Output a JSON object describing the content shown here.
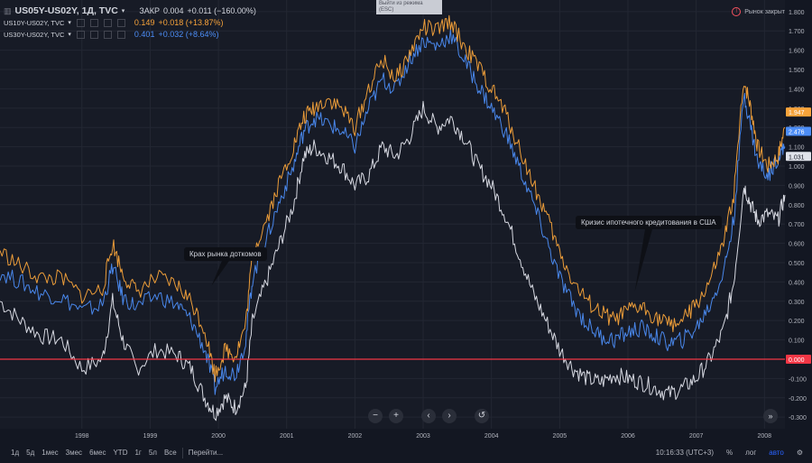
{
  "legend": {
    "main_symbol": "US05Y-US02Y, 1Д, TVC",
    "main_close_label": "ЗАКР",
    "main_close": "0.004",
    "main_change": "+0.011 (−160.00%)",
    "series": [
      {
        "symbol": "US10Y-US02Y, TVC",
        "value": "0.149",
        "change": "+0.018 (+13.87%)",
        "color": "#f7a33a"
      },
      {
        "symbol": "US30Y-US02Y, TVC",
        "value": "0.401",
        "change": "+0.032 (+8.64%)",
        "color": "#4c8df6"
      }
    ]
  },
  "exit_mode": {
    "line1": "Выйти из режима",
    "line2": "(ESC)"
  },
  "market_status": "Рынок закрыт",
  "annotations": {
    "dotcom": "Крах рынка доткомов",
    "mortgage": "Кризис ипотечного кредитования в США"
  },
  "nav": {
    "zoom_out": "−",
    "zoom_in": "+",
    "back": "‹",
    "forward": "›",
    "reset": "↺",
    "scroll_end": "»"
  },
  "bottom_bar": {
    "ranges": [
      "1д",
      "5д",
      "1мес",
      "3мес",
      "6мес",
      "YTD",
      "1г",
      "5л",
      "Все"
    ],
    "goto": "Перейти...",
    "time": "10:16:33 (UTC+3)",
    "percent": "%",
    "log": "лог",
    "auto": "авто"
  },
  "chart_data": {
    "type": "line",
    "x_labels": [
      "1998",
      "1999",
      "2000",
      "2001",
      "2002",
      "2003",
      "2004",
      "2005",
      "2006",
      "2007",
      "2008"
    ],
    "y_ticks": [
      "1.800",
      "1.700",
      "1.600",
      "1.500",
      "1.400",
      "1.300",
      "1.200",
      "1.100",
      "1.000",
      "0.900",
      "0.800",
      "0.700",
      "0.600",
      "0.500",
      "0.400",
      "0.300",
      "0.200",
      "0.100",
      "0.000",
      "-0.100",
      "-0.200",
      "-0.300"
    ],
    "ylim": [
      -0.36,
      1.86
    ],
    "xlim": [
      1997.3,
      2008.8
    ],
    "last_value_labels": [
      {
        "value": "1.947",
        "color": "#f7a33a"
      },
      {
        "value": "2.476",
        "color": "#4c8df6"
      },
      {
        "value": "1.031",
        "color": "#e0e3eb"
      },
      {
        "value": "0.000",
        "color": "#f23645"
      }
    ],
    "reference_line": {
      "value": 0.0,
      "color": "#f23645"
    },
    "annotation_points": [
      {
        "text_key": "dotcom",
        "x": 2000.4,
        "y": 0.38
      },
      {
        "text_key": "mortgage",
        "x": 2006.6,
        "y": 0.35
      }
    ],
    "series": [
      {
        "color": "#f7a33a",
        "points": [
          [
            1997.3,
            0.56
          ],
          [
            1997.6,
            0.48
          ],
          [
            1997.9,
            0.42
          ],
          [
            1998.2,
            0.42
          ],
          [
            1998.5,
            0.33
          ],
          [
            1998.8,
            0.36
          ],
          [
            1998.95,
            0.6
          ],
          [
            1999.1,
            0.44
          ],
          [
            1999.3,
            0.35
          ],
          [
            1999.6,
            0.42
          ],
          [
            1999.9,
            0.38
          ],
          [
            2000.1,
            0.3
          ],
          [
            2000.3,
            0.15
          ],
          [
            2000.45,
            -0.08
          ],
          [
            2000.6,
            0.05
          ],
          [
            2000.75,
            0.02
          ],
          [
            2000.9,
            0.18
          ],
          [
            2001.0,
            0.55
          ],
          [
            2001.2,
            0.72
          ],
          [
            2001.4,
            0.92
          ],
          [
            2001.6,
            1.1
          ],
          [
            2001.75,
            1.25
          ],
          [
            2001.9,
            1.3
          ],
          [
            2002.1,
            1.35
          ],
          [
            2002.3,
            1.3
          ],
          [
            2002.5,
            1.2
          ],
          [
            2002.7,
            1.4
          ],
          [
            2002.9,
            1.55
          ],
          [
            2003.1,
            1.45
          ],
          [
            2003.3,
            1.58
          ],
          [
            2003.5,
            1.72
          ],
          [
            2003.7,
            1.7
          ],
          [
            2003.9,
            1.75
          ],
          [
            2004.1,
            1.62
          ],
          [
            2004.3,
            1.52
          ],
          [
            2004.5,
            1.4
          ],
          [
            2004.7,
            1.28
          ],
          [
            2004.9,
            1.1
          ],
          [
            2005.1,
            0.92
          ],
          [
            2005.3,
            0.75
          ],
          [
            2005.5,
            0.55
          ],
          [
            2005.7,
            0.4
          ],
          [
            2005.9,
            0.3
          ],
          [
            2006.1,
            0.24
          ],
          [
            2006.3,
            0.2
          ],
          [
            2006.5,
            0.25
          ],
          [
            2006.7,
            0.27
          ],
          [
            2006.9,
            0.22
          ],
          [
            2007.1,
            0.18
          ],
          [
            2007.3,
            0.2
          ],
          [
            2007.5,
            0.28
          ],
          [
            2007.7,
            0.4
          ],
          [
            2007.9,
            0.6
          ],
          [
            2008.05,
            0.85
          ],
          [
            2008.2,
            1.45
          ],
          [
            2008.3,
            1.3
          ],
          [
            2008.4,
            1.1
          ],
          [
            2008.55,
            1.0
          ],
          [
            2008.7,
            1.05
          ],
          [
            2008.8,
            1.2
          ]
        ]
      },
      {
        "color": "#4c8df6",
        "points": [
          [
            1997.3,
            0.45
          ],
          [
            1997.6,
            0.4
          ],
          [
            1997.9,
            0.34
          ],
          [
            1998.2,
            0.32
          ],
          [
            1998.5,
            0.25
          ],
          [
            1998.8,
            0.28
          ],
          [
            1998.95,
            0.48
          ],
          [
            1999.1,
            0.32
          ],
          [
            1999.3,
            0.27
          ],
          [
            1999.6,
            0.33
          ],
          [
            1999.9,
            0.28
          ],
          [
            2000.1,
            0.2
          ],
          [
            2000.3,
            0.05
          ],
          [
            2000.45,
            -0.15
          ],
          [
            2000.6,
            -0.05
          ],
          [
            2000.75,
            -0.08
          ],
          [
            2000.9,
            0.1
          ],
          [
            2001.0,
            0.42
          ],
          [
            2001.2,
            0.62
          ],
          [
            2001.4,
            0.82
          ],
          [
            2001.6,
            1.0
          ],
          [
            2001.75,
            1.18
          ],
          [
            2001.9,
            1.25
          ],
          [
            2002.1,
            1.22
          ],
          [
            2002.3,
            1.18
          ],
          [
            2002.5,
            1.1
          ],
          [
            2002.7,
            1.3
          ],
          [
            2002.9,
            1.45
          ],
          [
            2003.1,
            1.4
          ],
          [
            2003.3,
            1.55
          ],
          [
            2003.5,
            1.65
          ],
          [
            2003.7,
            1.62
          ],
          [
            2003.9,
            1.68
          ],
          [
            2004.1,
            1.55
          ],
          [
            2004.3,
            1.42
          ],
          [
            2004.5,
            1.3
          ],
          [
            2004.7,
            1.18
          ],
          [
            2004.9,
            1.0
          ],
          [
            2005.1,
            0.82
          ],
          [
            2005.3,
            0.62
          ],
          [
            2005.5,
            0.42
          ],
          [
            2005.7,
            0.28
          ],
          [
            2005.9,
            0.18
          ],
          [
            2006.1,
            0.12
          ],
          [
            2006.3,
            0.1
          ],
          [
            2006.5,
            0.14
          ],
          [
            2006.7,
            0.16
          ],
          [
            2006.9,
            0.12
          ],
          [
            2007.1,
            0.08
          ],
          [
            2007.3,
            0.1
          ],
          [
            2007.5,
            0.16
          ],
          [
            2007.7,
            0.28
          ],
          [
            2007.9,
            0.45
          ],
          [
            2008.05,
            0.72
          ],
          [
            2008.2,
            1.38
          ],
          [
            2008.3,
            1.2
          ],
          [
            2008.4,
            1.02
          ],
          [
            2008.55,
            0.95
          ],
          [
            2008.7,
            1.05
          ],
          [
            2008.8,
            1.1
          ]
        ]
      },
      {
        "color": "#e0e3eb",
        "points": [
          [
            1997.3,
            0.3
          ],
          [
            1997.6,
            0.2
          ],
          [
            1997.9,
            0.12
          ],
          [
            1998.2,
            0.1
          ],
          [
            1998.5,
            -0.05
          ],
          [
            1998.8,
            0.0
          ],
          [
            1998.95,
            0.3
          ],
          [
            1999.1,
            0.1
          ],
          [
            1999.3,
            -0.05
          ],
          [
            1999.6,
            0.05
          ],
          [
            1999.9,
            0.02
          ],
          [
            2000.1,
            -0.05
          ],
          [
            2000.3,
            -0.2
          ],
          [
            2000.45,
            -0.28
          ],
          [
            2000.6,
            -0.2
          ],
          [
            2000.75,
            -0.25
          ],
          [
            2000.9,
            -0.15
          ],
          [
            2001.0,
            0.2
          ],
          [
            2001.2,
            0.4
          ],
          [
            2001.4,
            0.6
          ],
          [
            2001.6,
            0.8
          ],
          [
            2001.75,
            1.05
          ],
          [
            2001.9,
            1.1
          ],
          [
            2002.1,
            1.05
          ],
          [
            2002.3,
            1.0
          ],
          [
            2002.5,
            0.9
          ],
          [
            2002.7,
            0.95
          ],
          [
            2002.9,
            1.1
          ],
          [
            2003.1,
            1.05
          ],
          [
            2003.3,
            1.15
          ],
          [
            2003.5,
            1.3
          ],
          [
            2003.7,
            1.2
          ],
          [
            2003.9,
            1.25
          ],
          [
            2004.1,
            1.15
          ],
          [
            2004.3,
            1.0
          ],
          [
            2004.5,
            0.9
          ],
          [
            2004.7,
            0.75
          ],
          [
            2004.9,
            0.55
          ],
          [
            2005.1,
            0.35
          ],
          [
            2005.3,
            0.2
          ],
          [
            2005.5,
            0.05
          ],
          [
            2005.7,
            -0.05
          ],
          [
            2005.9,
            -0.1
          ],
          [
            2006.1,
            -0.12
          ],
          [
            2006.3,
            -0.08
          ],
          [
            2006.5,
            -0.1
          ],
          [
            2006.7,
            -0.12
          ],
          [
            2006.9,
            -0.15
          ],
          [
            2007.1,
            -0.18
          ],
          [
            2007.3,
            -0.15
          ],
          [
            2007.5,
            -0.1
          ],
          [
            2007.7,
            0.0
          ],
          [
            2007.9,
            0.15
          ],
          [
            2008.05,
            0.4
          ],
          [
            2008.2,
            0.9
          ],
          [
            2008.3,
            0.8
          ],
          [
            2008.4,
            0.72
          ],
          [
            2008.55,
            0.75
          ],
          [
            2008.7,
            0.72
          ],
          [
            2008.8,
            0.85
          ]
        ]
      }
    ]
  }
}
